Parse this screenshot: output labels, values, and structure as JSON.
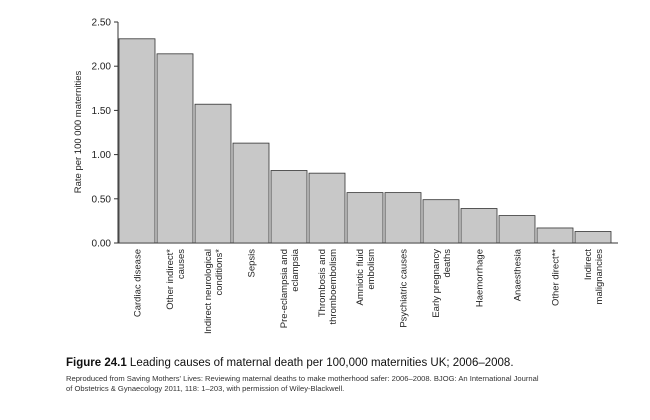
{
  "chart_data": {
    "type": "bar",
    "categories": [
      [
        "Cardiac disease"
      ],
      [
        "Other indirect*",
        "causes"
      ],
      [
        "Indirect neurological",
        "conditions*"
      ],
      [
        "Sepsis"
      ],
      [
        "Pre-eclampsia and",
        "eclampsia"
      ],
      [
        "Thrombosis and",
        "thromboembolism"
      ],
      [
        "Amniotic fluid",
        "embolism"
      ],
      [
        "Psychiatric causes"
      ],
      [
        "Early pregnancy",
        "deaths"
      ],
      [
        "Haemorrhage"
      ],
      [
        "Anaesthesia"
      ],
      [
        "Other direct**"
      ],
      [
        "Indirect",
        "malignancies"
      ]
    ],
    "values": [
      2.31,
      2.14,
      1.57,
      1.13,
      0.82,
      0.79,
      0.57,
      0.57,
      0.49,
      0.39,
      0.31,
      0.17,
      0.13
    ],
    "ylabel": "Rate per 100 000 maternities",
    "ylim": [
      0,
      2.5
    ],
    "yticks": [
      "0.00",
      "0.50",
      "1.00",
      "1.50",
      "2.00",
      "2.50"
    ],
    "grid": false,
    "bar_color": "#c8c8c8",
    "bar_stroke": "#333333"
  },
  "caption": {
    "figure_number": "Figure 24.1",
    "title": "Leading causes of maternal death per 100,000 maternities UK; 2006–2008.",
    "source_line_1": "Reproduced from Saving Mothers' Lives: Reviewing maternal deaths to make motherhood safer: 2006–2008. BJOG: An International Journal",
    "source_line_2": "of Obstetrics & Gynaecology 2011, 118: 1–203, with permission of Wiley-Blackwell."
  }
}
